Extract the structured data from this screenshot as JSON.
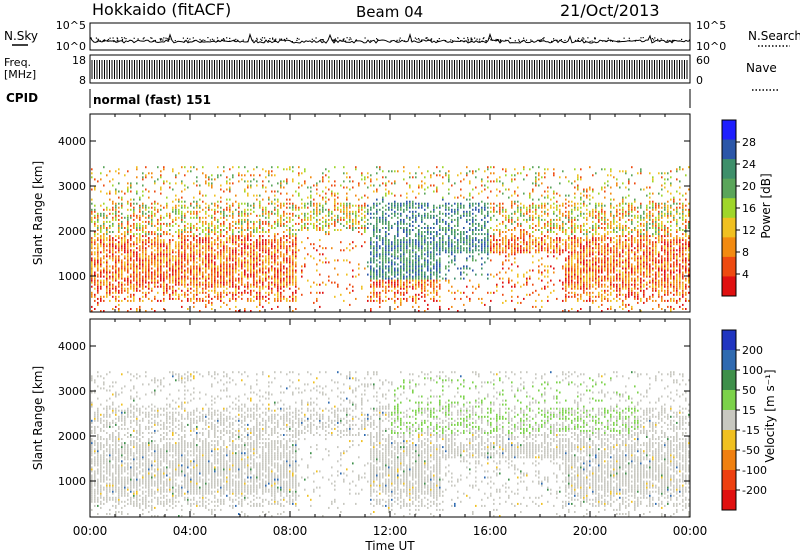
{
  "header": {
    "station": "Hokkaido (fitACF)",
    "beam": "Beam 04",
    "date": "21/Oct/2013"
  },
  "panel_labels": {
    "nsky": "N.Sky",
    "freq": "Freq.",
    "freq_unit": "[MHz]",
    "cpid": "CPID",
    "nsearch": "N.Search",
    "nave": "Nave",
    "cpid_text": "normal (fast) 151"
  },
  "chart_data": [
    {
      "type": "line",
      "name": "noise",
      "yticks_left": [
        "10^5",
        "10^0"
      ],
      "yticks_right": [
        "10^5",
        "10^0"
      ]
    },
    {
      "type": "line",
      "name": "frequency",
      "yticks_left": [
        "18",
        "8"
      ],
      "yticks_right": [
        "60",
        "0"
      ]
    },
    {
      "type": "heatmap",
      "name": "power",
      "xlabel": "",
      "ylabel": "Slant Range [km]",
      "y_ticks": [
        1000,
        2000,
        3000,
        4000
      ],
      "ylim": [
        200,
        4600
      ],
      "xlim_hours": [
        0,
        24
      ],
      "colorbar": {
        "label": "Power [dB]",
        "ticks": [
          "4",
          "8",
          "12",
          "16",
          "20",
          "24",
          "28"
        ],
        "colors": [
          "#1f1fff",
          "#2b56a8",
          "#3e8f6a",
          "#5aa55a",
          "#9fd62a",
          "#f0c020",
          "#f28a10",
          "#ee4a10",
          "#e01010"
        ]
      }
    },
    {
      "type": "heatmap",
      "name": "velocity",
      "xlabel": "Time UT",
      "ylabel": "Slant Range [km]",
      "x_ticks": [
        "00:00",
        "04:00",
        "08:00",
        "12:00",
        "16:00",
        "20:00",
        "00:00"
      ],
      "y_ticks": [
        1000,
        2000,
        3000,
        4000
      ],
      "ylim": [
        200,
        4600
      ],
      "xlim_hours": [
        0,
        24
      ],
      "colorbar": {
        "label": "Velocity [m s⁻¹]",
        "ticks": [
          "200",
          "100",
          "50",
          "15",
          "-15",
          "-50",
          "-100",
          "-200"
        ],
        "colors": [
          "#2035c0",
          "#2f6ab0",
          "#3e8f4a",
          "#7cd24a",
          "#c8c8c0",
          "#f0c020",
          "#f08010",
          "#ee4010",
          "#e01010"
        ]
      }
    }
  ]
}
